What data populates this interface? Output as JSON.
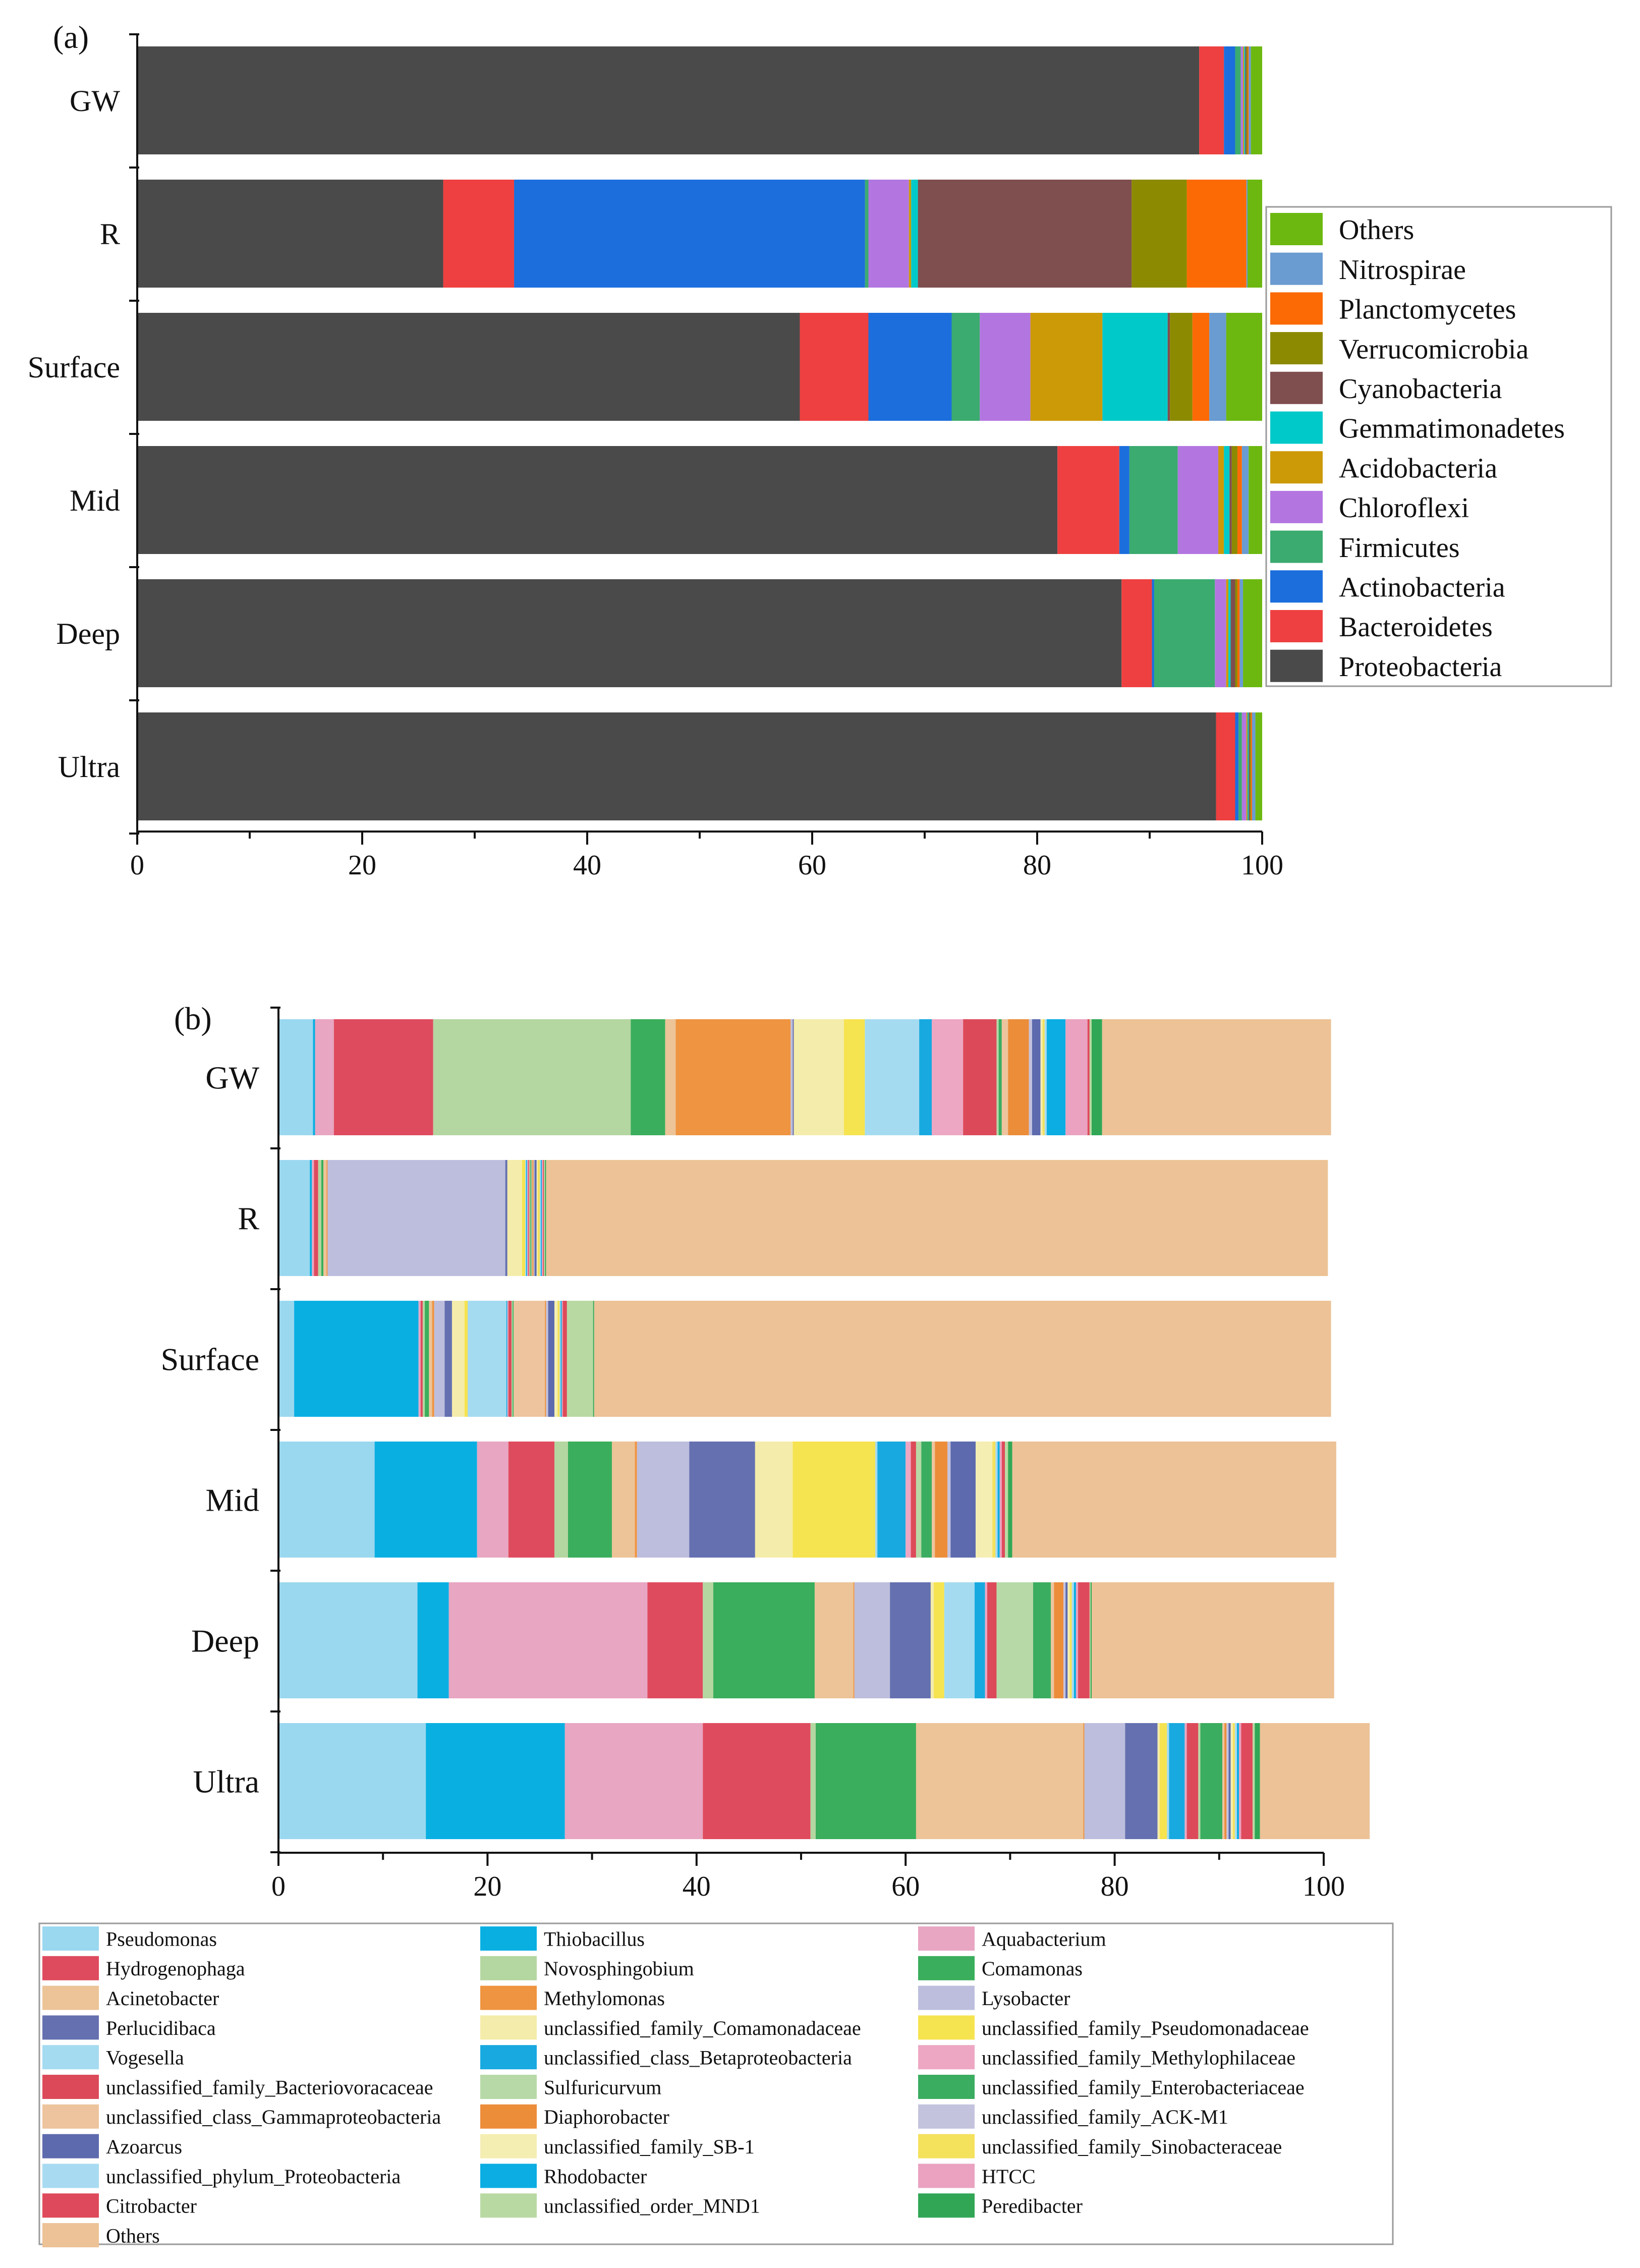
{
  "panel_a_label": "(a)",
  "panel_b_label": "(b)",
  "chart_data": [
    {
      "type": "bar",
      "orientation": "horizontal",
      "stacked": true,
      "title": "(a)",
      "xlabel": "",
      "ylabel": "",
      "xlim": [
        0,
        100
      ],
      "xticks": [
        0,
        20,
        40,
        60,
        80,
        100
      ],
      "categories": [
        "GW",
        "R",
        "Surface",
        "Mid",
        "Deep",
        "Ultra"
      ],
      "legend_position": "right",
      "series": [
        {
          "name": "Proteobacteria",
          "color": "#4a4a4a",
          "values": [
            94.4,
            27.2,
            58.9,
            81.8,
            87.5,
            95.9
          ]
        },
        {
          "name": "Bacteroidetes",
          "color": "#ee4040",
          "values": [
            2.2,
            6.3,
            6.1,
            5.5,
            2.7,
            1.7
          ]
        },
        {
          "name": "Actinobacteria",
          "color": "#1c6edc",
          "values": [
            1.0,
            31.2,
            7.4,
            0.9,
            0.2,
            0.3
          ]
        },
        {
          "name": "Firmicutes",
          "color": "#3bab6f",
          "values": [
            0.5,
            0.3,
            2.5,
            4.3,
            5.4,
            0.3
          ]
        },
        {
          "name": "Chloroflexi",
          "color": "#b376e0",
          "values": [
            0.2,
            3.6,
            4.5,
            3.6,
            1.0,
            0.4
          ]
        },
        {
          "name": "Acidobacteria",
          "color": "#cc9a06",
          "values": [
            0.1,
            0.2,
            6.4,
            0.5,
            0.2,
            0.1
          ]
        },
        {
          "name": "Gemmatimonadetes",
          "color": "#00c9c9",
          "values": [
            0.1,
            0.6,
            5.8,
            0.5,
            0.2,
            0.1
          ]
        },
        {
          "name": "Cyanobacteria",
          "color": "#7f4e4e",
          "values": [
            0.1,
            19.0,
            0.2,
            0.2,
            0.4,
            0.1
          ]
        },
        {
          "name": "Verrucomicrobia",
          "color": "#8c8a00",
          "values": [
            0.1,
            4.9,
            2.0,
            0.5,
            0.2,
            0.1
          ]
        },
        {
          "name": "Planctomycetes",
          "color": "#fb6a04",
          "values": [
            0.1,
            5.3,
            1.5,
            0.4,
            0.2,
            0.1
          ]
        },
        {
          "name": "Nitrospirae",
          "color": "#6a9bd1",
          "values": [
            0.2,
            0.1,
            1.5,
            0.6,
            0.3,
            0.3
          ]
        },
        {
          "name": "Others",
          "color": "#6cb810",
          "values": [
            1.0,
            1.3,
            3.2,
            1.2,
            1.7,
            0.6
          ]
        }
      ]
    },
    {
      "type": "bar",
      "orientation": "horizontal",
      "stacked": true,
      "title": "(b)",
      "xlabel": "",
      "ylabel": "",
      "xlim": [
        0,
        100
      ],
      "xticks": [
        0,
        20,
        40,
        60,
        80,
        100
      ],
      "categories": [
        "GW",
        "R",
        "Surface",
        "Mid",
        "Deep",
        "Ultra"
      ],
      "legend_position": "bottom",
      "legend_columns": 3,
      "series": [
        {
          "name": "Pseudomonas",
          "color": "#9ad8ef",
          "values": [
            3.3,
            3.0,
            1.5,
            9.2,
            13.3,
            14.1
          ]
        },
        {
          "name": "Thiobacillus",
          "color": "#0aafe2",
          "values": [
            0.2,
            0.2,
            11.9,
            9.8,
            3.0,
            13.3
          ]
        },
        {
          "name": "Aquabacterium",
          "color": "#e8a6c2",
          "values": [
            1.8,
            0.2,
            0.2,
            3.0,
            19.0,
            13.2
          ]
        },
        {
          "name": "Hydrogenophaga",
          "color": "#df4b5e",
          "values": [
            9.5,
            0.4,
            0.2,
            4.4,
            5.3,
            10.3
          ]
        },
        {
          "name": "Novosphingobium",
          "color": "#b4d6a0",
          "values": [
            18.9,
            0.3,
            0.2,
            1.3,
            1.0,
            0.5
          ]
        },
        {
          "name": "Comamonas",
          "color": "#3aae5c",
          "values": [
            3.3,
            0.2,
            0.4,
            4.2,
            9.7,
            9.6
          ]
        },
        {
          "name": "Acinetobacter",
          "color": "#ecc498",
          "values": [
            1.0,
            0.3,
            0.3,
            2.2,
            3.7,
            16.0
          ]
        },
        {
          "name": "Methylomonas",
          "color": "#ef9440",
          "values": [
            11.0,
            0.1,
            0.2,
            0.2,
            0.1,
            0.1
          ]
        },
        {
          "name": "Lysobacter",
          "color": "#bdbedd",
          "values": [
            0.2,
            17.0,
            1.0,
            5.0,
            3.4,
            3.9
          ]
        },
        {
          "name": "Perlucidibaca",
          "color": "#6570b0",
          "values": [
            0.1,
            0.2,
            0.7,
            6.3,
            3.9,
            3.1
          ]
        },
        {
          "name": "unclassified_family_Comamonadaceae",
          "color": "#f4ecaa",
          "values": [
            4.8,
            1.4,
            1.2,
            3.6,
            0.3,
            0.2
          ]
        },
        {
          "name": "unclassified_family_Pseudomonadaceae",
          "color": "#f6e350",
          "values": [
            2.0,
            0.3,
            0.3,
            7.9,
            1.0,
            0.7
          ]
        },
        {
          "name": "Vogesella",
          "color": "#a5dbf0",
          "values": [
            5.2,
            0.1,
            3.7,
            0.2,
            2.9,
            0.2
          ]
        },
        {
          "name": "unclassified_class_Betaproteobacteria",
          "color": "#18a9e0",
          "values": [
            1.2,
            0.1,
            0.1,
            2.7,
            1.0,
            1.5
          ]
        },
        {
          "name": "unclassified_family_Methylophilaceae",
          "color": "#eda7c3",
          "values": [
            3.0,
            0.1,
            0.1,
            0.5,
            0.2,
            0.2
          ]
        },
        {
          "name": "unclassified_family_Bacteriovoracaceae",
          "color": "#dc4a5a",
          "values": [
            3.2,
            0.1,
            0.3,
            0.5,
            0.9,
            1.1
          ]
        },
        {
          "name": "Sulfuricurvum",
          "color": "#b7d9a7",
          "values": [
            0.2,
            0.1,
            0.1,
            0.5,
            3.5,
            0.2
          ]
        },
        {
          "name": "unclassified_family_Enterobacteriaceae",
          "color": "#3bad60",
          "values": [
            0.3,
            0.1,
            0.1,
            1.0,
            1.7,
            2.1
          ]
        },
        {
          "name": "unclassified_class_Gammaproteobacteria",
          "color": "#edc49d",
          "values": [
            0.6,
            0.1,
            3.0,
            0.3,
            0.3,
            0.2
          ]
        },
        {
          "name": "Diaphorobacter",
          "color": "#ec8d3a",
          "values": [
            2.0,
            0.1,
            0.1,
            1.2,
            0.9,
            0.2
          ]
        },
        {
          "name": "unclassified_family_ACK-M1",
          "color": "#c4c3de",
          "values": [
            0.3,
            0.1,
            0.2,
            0.3,
            0.2,
            0.2
          ]
        },
        {
          "name": "Azoarcus",
          "color": "#5d6aad",
          "values": [
            0.8,
            0.2,
            0.6,
            2.4,
            0.2,
            0.2
          ]
        },
        {
          "name": "unclassified_family_SB-1",
          "color": "#f5eeb2",
          "values": [
            0.2,
            0.1,
            0.3,
            1.6,
            0.2,
            0.2
          ]
        },
        {
          "name": "unclassified_family_Sinobacteraceae",
          "color": "#f4e15c",
          "values": [
            0.2,
            0.2,
            0.2,
            0.3,
            0.2,
            0.2
          ]
        },
        {
          "name": "unclassified_phylum_Proteobacteria",
          "color": "#a8dbf1",
          "values": [
            0.2,
            0.1,
            0.1,
            0.2,
            0.2,
            0.2
          ]
        },
        {
          "name": "Rhodobacter",
          "color": "#0bade3",
          "values": [
            1.8,
            0.1,
            0.1,
            0.2,
            0.2,
            0.2
          ]
        },
        {
          "name": "HTCC",
          "color": "#eaa2c0",
          "values": [
            2.1,
            0.1,
            0.1,
            0.2,
            0.2,
            0.2
          ]
        },
        {
          "name": "Citrobacter",
          "color": "#de4a5b",
          "values": [
            0.2,
            0.1,
            0.4,
            0.3,
            1.1,
            1.1
          ]
        },
        {
          "name": "unclassified_order_MND1",
          "color": "#b9d9a3",
          "values": [
            0.2,
            0.1,
            2.5,
            0.3,
            0.1,
            0.2
          ]
        },
        {
          "name": "Peredibacter",
          "color": "#31a756",
          "values": [
            1.0,
            0.1,
            0.1,
            0.4,
            0.1,
            0.5
          ]
        },
        {
          "name": "Others",
          "color": "#ecc296",
          "values": [
            21.9,
            74.8,
            70.5,
            31.0,
            23.2,
            10.5
          ]
        }
      ]
    }
  ]
}
